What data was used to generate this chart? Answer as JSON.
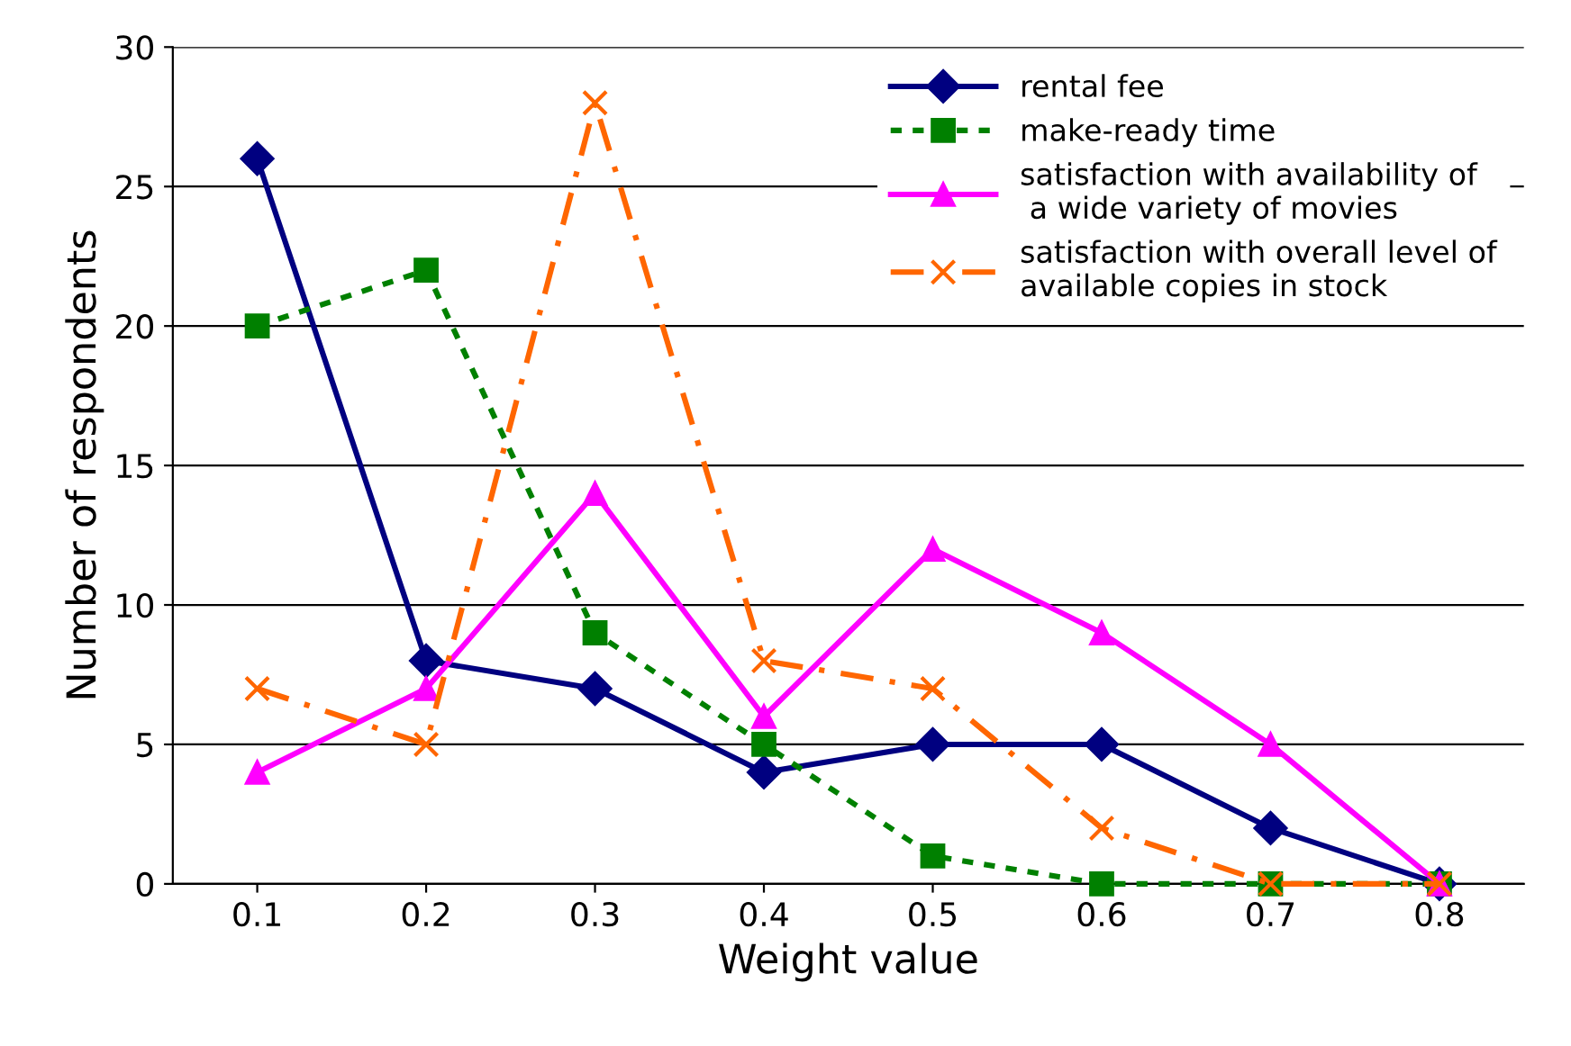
{
  "chart_data": {
    "type": "line",
    "xlabel": "Weight value",
    "ylabel": "Number of respondents",
    "categories": [
      "0.1",
      "0.2",
      "0.3",
      "0.4",
      "0.5",
      "0.6",
      "0.7",
      "0.8"
    ],
    "series": [
      {
        "name": "rental fee",
        "color": "#000080",
        "marker": "diamond",
        "line_style": "solid",
        "values": [
          26,
          8,
          7,
          4,
          5,
          5,
          2,
          0
        ]
      },
      {
        "name": "make-ready time",
        "color": "#008000",
        "marker": "square",
        "line_style": "dotted",
        "values": [
          20,
          22,
          9,
          5,
          1,
          0,
          0,
          0
        ]
      },
      {
        "name": "satisfaction with availability of\n a wide variety of movies",
        "color": "#ff00ff",
        "marker": "triangle",
        "line_style": "solid",
        "values": [
          4,
          7,
          14,
          6,
          12,
          9,
          5,
          0
        ]
      },
      {
        "name": "satisfaction with overall level of\navailable copies in stock",
        "color": "#ff6600",
        "marker": "cross",
        "line_style": "dashed",
        "values": [
          7,
          5,
          28,
          8,
          7,
          2,
          0,
          0
        ]
      }
    ],
    "ylim": [
      0,
      30
    ],
    "yticks": [
      0,
      5,
      10,
      15,
      20,
      25,
      30
    ],
    "grid": "y",
    "legend": "top right"
  }
}
